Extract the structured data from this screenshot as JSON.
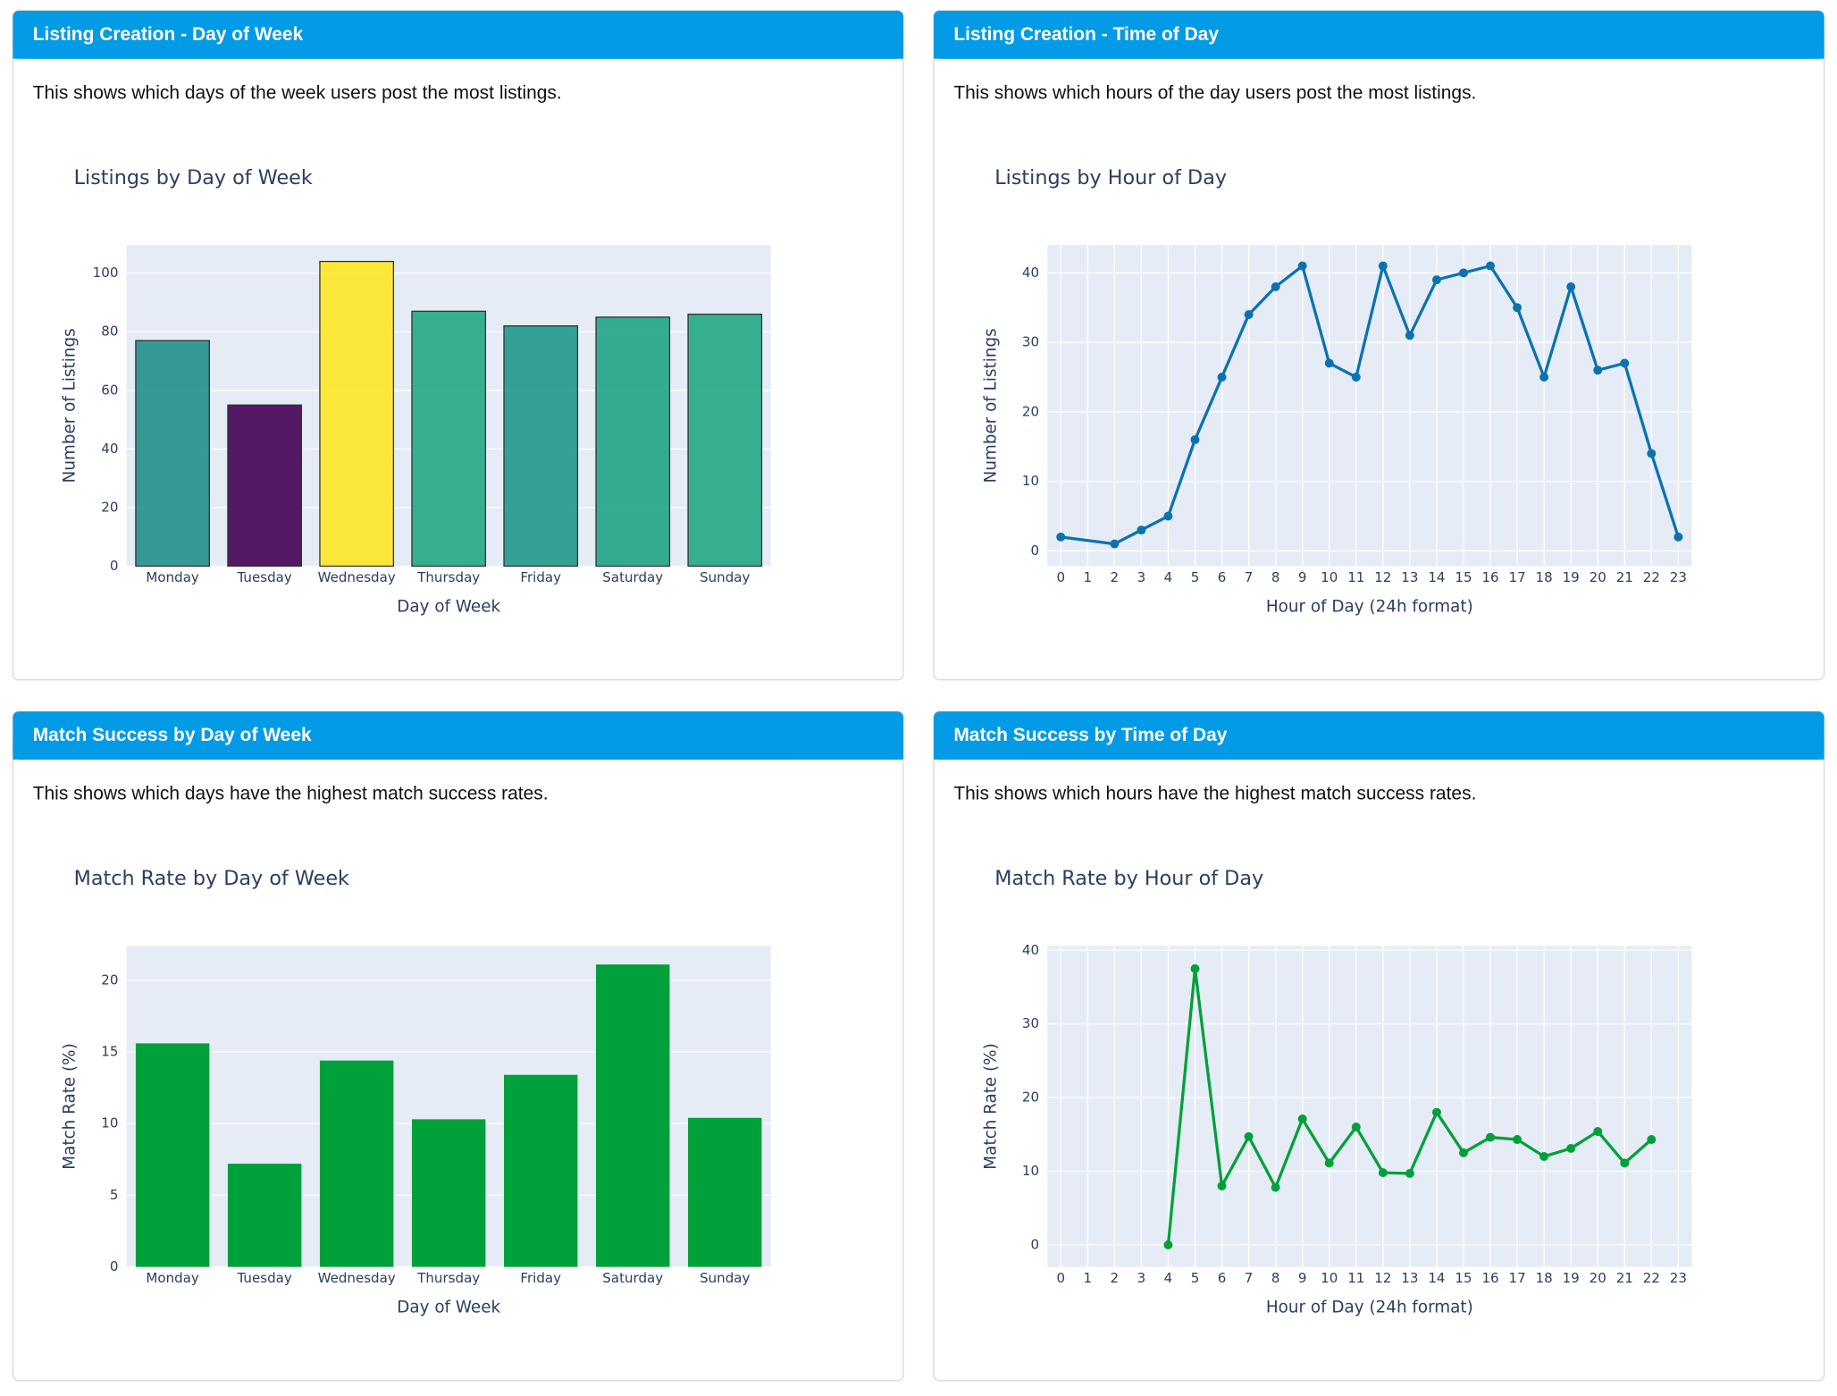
{
  "panels": [
    {
      "header": "Listing Creation - Day of Week",
      "description": "This shows which days of the week users post the most listings."
    },
    {
      "header": "Listing Creation - Time of Day",
      "description": "This shows which hours of the day users post the most listings."
    },
    {
      "header": "Match Success by Day of Week",
      "description": "This shows which days have the highest match success rates."
    },
    {
      "header": "Match Success by Time of Day",
      "description": "This shows which hours have the highest match success rates."
    }
  ],
  "chart_data": [
    {
      "type": "bar",
      "title": "Listings by Day of Week",
      "x_label": "Day of Week",
      "y_label": "Number of Listings",
      "categories": [
        "Monday",
        "Tuesday",
        "Wednesday",
        "Thursday",
        "Friday",
        "Saturday",
        "Sunday"
      ],
      "values": [
        77,
        55,
        104,
        87,
        82,
        85,
        86
      ],
      "colors": [
        "#21918c",
        "#440154",
        "#fde725",
        "#22a884",
        "#1f9a8a",
        "#20a486",
        "#22a785"
      ],
      "ylim": [
        0,
        109.6
      ],
      "yticks": [
        0,
        20,
        40,
        60,
        80,
        100
      ],
      "grid": true
    },
    {
      "type": "line",
      "title": "Listings by Hour of Day",
      "x_label": "Hour of Day (24h format)",
      "y_label": "Number of Listings",
      "x": [
        0,
        2,
        3,
        4,
        5,
        6,
        7,
        8,
        9,
        10,
        11,
        12,
        13,
        14,
        15,
        16,
        17,
        18,
        19,
        20,
        21,
        22,
        23
      ],
      "values": [
        2,
        1,
        3,
        5,
        16,
        25,
        34,
        38,
        41,
        27,
        25,
        41,
        31,
        39,
        40,
        41,
        35,
        25,
        38,
        26,
        27,
        14,
        2
      ],
      "color": "#0b72b0",
      "xlim": [
        -0.5,
        23.5
      ],
      "xticks": [
        0,
        1,
        2,
        3,
        4,
        5,
        6,
        7,
        8,
        9,
        10,
        11,
        12,
        13,
        14,
        15,
        16,
        17,
        18,
        19,
        20,
        21,
        22,
        23
      ],
      "ylim": [
        -2.2,
        44
      ],
      "yticks": [
        0,
        10,
        20,
        30,
        40
      ],
      "grid": true
    },
    {
      "type": "bar",
      "title": "Match Rate by Day of Week",
      "x_label": "Day of Week",
      "y_label": "Match Rate (%)",
      "categories": [
        "Monday",
        "Tuesday",
        "Wednesday",
        "Thursday",
        "Friday",
        "Saturday",
        "Sunday"
      ],
      "values": [
        15.6,
        7.2,
        14.4,
        10.3,
        13.4,
        21.1,
        10.4
      ],
      "color": "#00a03a",
      "ylim": [
        0,
        22.4
      ],
      "yticks": [
        0,
        5,
        10,
        15,
        20
      ],
      "grid": true
    },
    {
      "type": "line",
      "title": "Match Rate by Hour of Day",
      "x_label": "Hour of Day (24h format)",
      "y_label": "Match Rate (%)",
      "x": [
        4,
        5,
        6,
        7,
        8,
        9,
        10,
        11,
        12,
        13,
        14,
        15,
        16,
        17,
        18,
        19,
        20,
        21,
        22
      ],
      "values": [
        0,
        37.5,
        8,
        14.7,
        7.8,
        17.1,
        11.1,
        16,
        9.8,
        9.7,
        18,
        12.5,
        14.6,
        14.3,
        12,
        13.1,
        15.4,
        11.1,
        14.3
      ],
      "color": "#00a03a",
      "xlim": [
        -0.5,
        23.5
      ],
      "xticks": [
        0,
        1,
        2,
        3,
        4,
        5,
        6,
        7,
        8,
        9,
        10,
        11,
        12,
        13,
        14,
        15,
        16,
        17,
        18,
        19,
        20,
        21,
        22,
        23
      ],
      "ylim": [
        -3,
        40.6
      ],
      "yticks": [
        0,
        10,
        20,
        30,
        40
      ],
      "grid": true
    }
  ]
}
